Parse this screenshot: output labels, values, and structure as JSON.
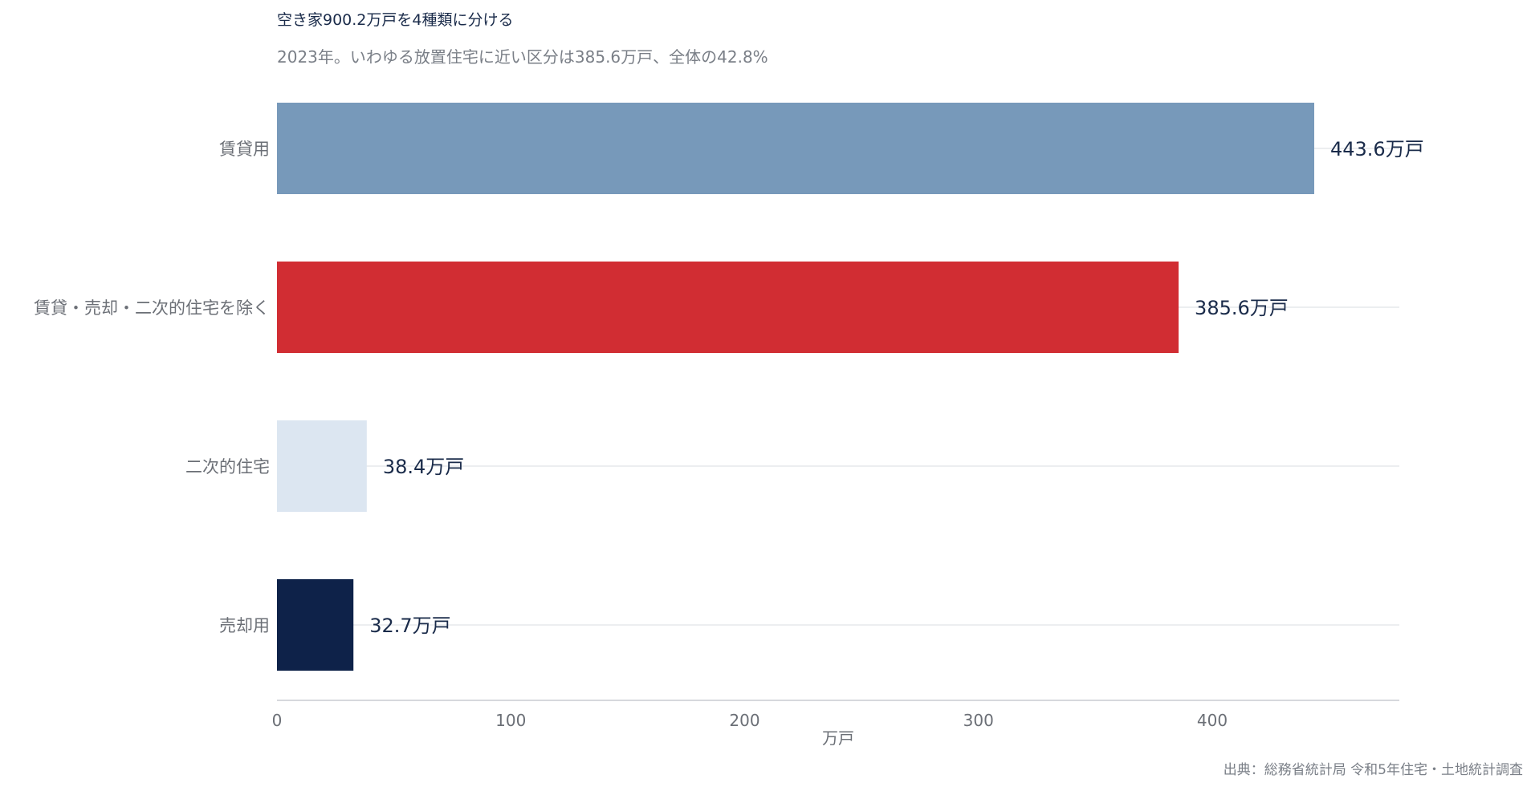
{
  "chart_data": {
    "type": "bar",
    "orientation": "horizontal",
    "title": "空き家900.2万戸を4種類に分ける",
    "subtitle": "2023年。いわゆる放置住宅に近い区分は385.6万戸、全体の42.8%",
    "categories": [
      "賃貸用",
      "賃貸・売却・二次的住宅を除く",
      "二次的住宅",
      "売却用"
    ],
    "values": [
      443.6,
      385.6,
      38.4,
      32.7
    ],
    "value_labels": [
      "443.6万戸",
      "385.6万戸",
      "38.4万戸",
      "32.7万戸"
    ],
    "colors": [
      "#7799ba",
      "#d12d33",
      "#dce6f1",
      "#0e2249"
    ],
    "xlabel": "万戸",
    "ylabel": "",
    "xlim": [
      0,
      480
    ],
    "xticks": [
      0,
      100,
      200,
      300,
      400
    ],
    "grid": true,
    "legend": "none",
    "source": "出典：総務省統計局 令和5年住宅・土地統計調査"
  }
}
